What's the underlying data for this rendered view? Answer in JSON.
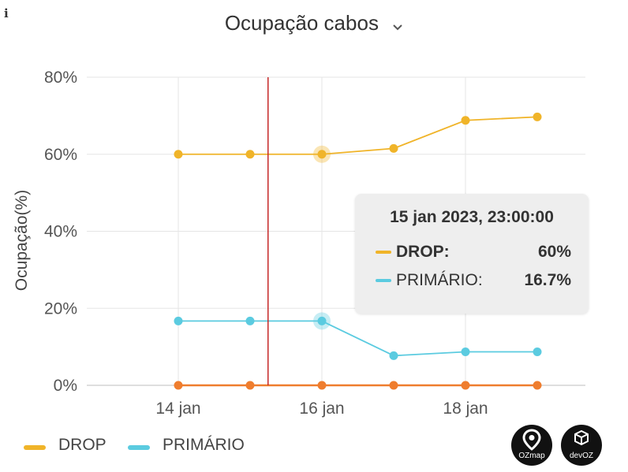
{
  "title": "Ocupação cabos",
  "info_icon": "info-icon",
  "chart_data": {
    "type": "line",
    "title": "Ocupação cabos",
    "ylabel": "Ocupação(%)",
    "xlabel": "",
    "ylim": [
      0,
      80
    ],
    "yticks": [
      "0%",
      "20%",
      "40%",
      "60%",
      "80%"
    ],
    "x_tick_labels": [
      "14 jan",
      "16 jan",
      "18 jan"
    ],
    "x": [
      "2023-01-14",
      "2023-01-15",
      "2023-01-16",
      "2023-01-17",
      "2023-01-18",
      "2023-01-19"
    ],
    "series": [
      {
        "name": "DROP",
        "color": "#f0b429",
        "values": [
          60,
          60,
          60,
          61.5,
          68.8,
          69.7
        ]
      },
      {
        "name": "PRIMÁRIO",
        "color": "#5bcbe0",
        "values": [
          16.7,
          16.7,
          16.7,
          7.7,
          8.7,
          8.7
        ]
      },
      {
        "color": "#ef7d2e",
        "values": [
          0,
          0,
          0,
          0,
          0,
          0
        ]
      }
    ],
    "highlighted_point_index": 2,
    "cursor_x": "2023-01-16 05:00",
    "grid": true,
    "legend_position": "bottom-left"
  },
  "tooltip": {
    "title": "15 jan 2023, 23:00:00",
    "rows": [
      {
        "label": "DROP:",
        "value": "60%",
        "color": "#f0b429"
      },
      {
        "label": "PRIMÁRIO:",
        "value": "16.7%",
        "color": "#5bcbe0"
      }
    ]
  },
  "legend": [
    {
      "label": "DROP",
      "color": "#f0b429"
    },
    {
      "label": "PRIMÁRIO",
      "color": "#5bcbe0"
    }
  ],
  "logos": [
    {
      "text": "OZmap",
      "icon": "map-pin-icon"
    },
    {
      "text": "devOZ",
      "icon": "cube-icon"
    }
  ]
}
